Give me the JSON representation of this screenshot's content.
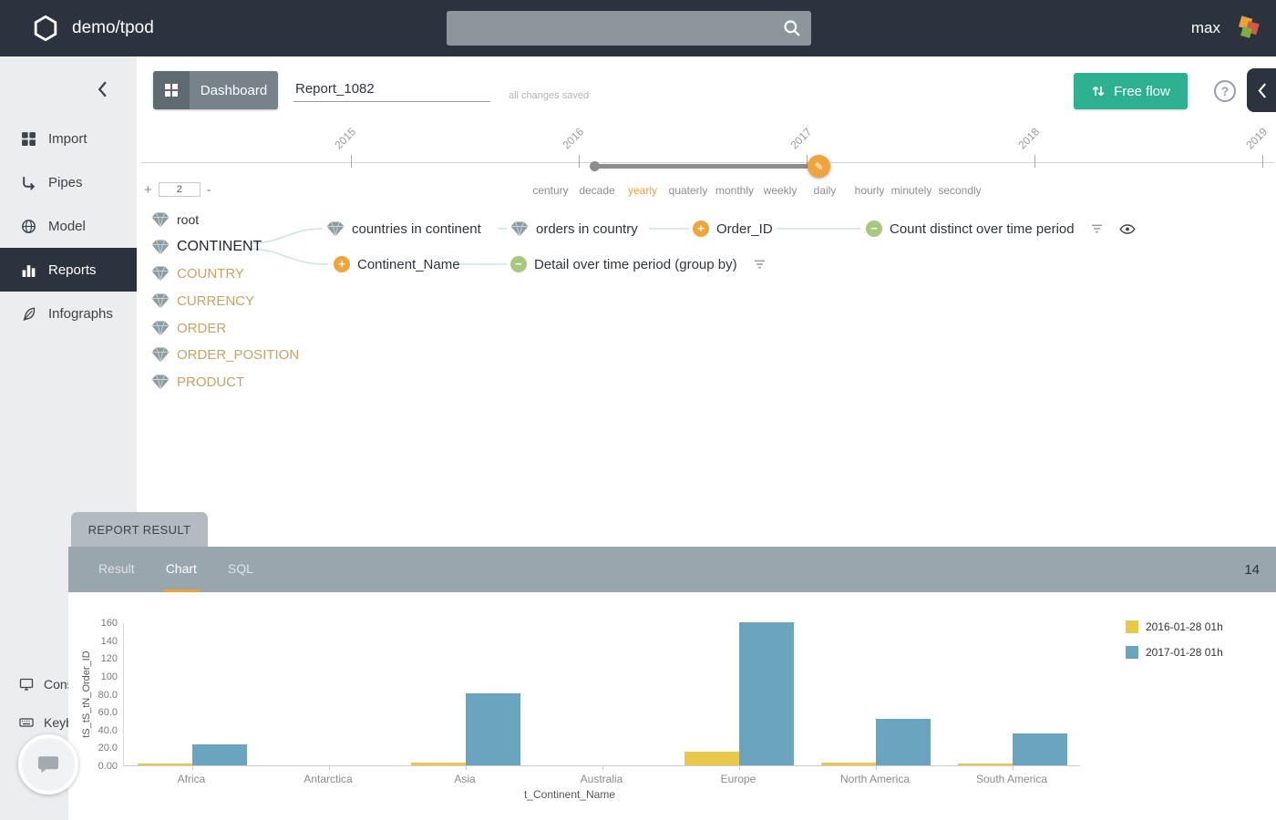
{
  "topbar": {
    "brand": "demo/tpod",
    "search": {
      "value": "",
      "placeholder": ""
    },
    "username": "max"
  },
  "sidebar": {
    "items": [
      {
        "label": "Import",
        "icon": "import-grid-icon",
        "active": false
      },
      {
        "label": "Pipes",
        "icon": "pipes-icon",
        "active": false
      },
      {
        "label": "Model",
        "icon": "globe-icon",
        "active": false
      },
      {
        "label": "Reports",
        "icon": "reports-bar-chart-icon",
        "active": true
      },
      {
        "label": "Infographs",
        "icon": "feather-icon",
        "active": false
      }
    ],
    "bottom_items": [
      {
        "label": "Console",
        "icon": "monitor-icon"
      },
      {
        "label": "Keyboard",
        "icon": "keyboard-icon"
      }
    ]
  },
  "header": {
    "dashboard_label": "Dashboard",
    "report_name": "Report_1082",
    "save_status": "all changes saved",
    "free_flow_label": "Free flow",
    "help_label": "?"
  },
  "timeline": {
    "years": [
      "2015",
      "2016",
      "2017",
      "2018",
      "2019"
    ],
    "granularities": [
      "century",
      "decade",
      "yearly",
      "quaterly",
      "monthly",
      "weekly",
      "daily",
      "hourly",
      "minutely",
      "secondly"
    ],
    "active_granularity": "yearly",
    "zoom": {
      "plus": "+",
      "value": "2",
      "minus": "-"
    },
    "selected_range": {
      "start": "2016",
      "end": "2017"
    }
  },
  "tree": {
    "root_label": "root",
    "tables": [
      {
        "name": "CONTINENT",
        "selected": true
      },
      {
        "name": "COUNTRY",
        "selected": false
      },
      {
        "name": "CURRENCY",
        "selected": false
      },
      {
        "name": "ORDER",
        "selected": false
      },
      {
        "name": "ORDER_POSITION",
        "selected": false
      },
      {
        "name": "PRODUCT",
        "selected": false
      }
    ],
    "branch1": [
      {
        "label": "countries in continent",
        "icon": "table-diamond-icon"
      },
      {
        "label": "orders in country",
        "icon": "table-diamond-icon"
      },
      {
        "label": "Order_ID",
        "icon": "plus-circle-icon"
      },
      {
        "label": "Count distinct over time period",
        "icon": "minus-circle-icon",
        "trailing": [
          "filter-icon",
          "eye-icon"
        ]
      }
    ],
    "branch2": [
      {
        "label": "Continent_Name",
        "icon": "plus-circle-icon"
      },
      {
        "label": "Detail over time period (group by)",
        "icon": "minus-circle-icon",
        "trailing": [
          "filter-icon"
        ]
      }
    ]
  },
  "report_panel": {
    "tab_title": "REPORT RESULT",
    "tabs": [
      "Result",
      "Chart",
      "SQL"
    ],
    "active_tab": "Chart",
    "count": "14"
  },
  "chart_data": {
    "type": "bar",
    "categories": [
      "Africa",
      "Antarctica",
      "Asia",
      "Australia",
      "Europe",
      "North America",
      "South America"
    ],
    "series": [
      {
        "name": "2016-01-28 01h",
        "color": "#e9c94a",
        "values": [
          2,
          0,
          3,
          0,
          15,
          3,
          2
        ]
      },
      {
        "name": "2017-01-28 01h",
        "color": "#6ba4be",
        "values": [
          23,
          0,
          81,
          0,
          160,
          52,
          36
        ]
      }
    ],
    "xlabel": "t_Continent_Name",
    "ylabel": "tS_tS_tN_Order_ID",
    "ylim": [
      0,
      160
    ],
    "ytick_labels": [
      "0.00",
      "20.0",
      "40.0",
      "60.0",
      "80.0",
      "100",
      "120",
      "140",
      "160"
    ],
    "legend_position": "top-right",
    "grid": false
  },
  "colors": {
    "topbar_bg": "#2c333e",
    "accent_orange": "#eda53c",
    "teal_button": "#2eb190",
    "series_2016": "#e9c94a",
    "series_2017": "#6ba4be",
    "tree_table_text": "#c9a265"
  }
}
